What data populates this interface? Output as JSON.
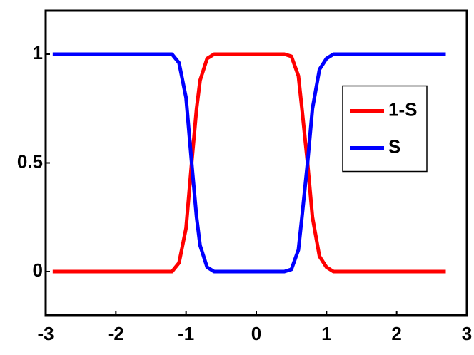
{
  "chart_data": {
    "type": "line",
    "x": [
      -2.9,
      -2.5,
      -2,
      -1.5,
      -1.2,
      -1.1,
      -1.0,
      -0.92,
      -0.85,
      -0.8,
      -0.7,
      -0.6,
      0,
      0.4,
      0.5,
      0.6,
      0.65,
      0.73,
      0.8,
      0.9,
      1.0,
      1.1,
      1.5,
      2,
      2.5,
      2.7
    ],
    "series": [
      {
        "name": "1-S",
        "color": "#ff0000",
        "values": [
          0,
          0,
          0,
          0,
          0,
          0.04,
          0.2,
          0.5,
          0.75,
          0.88,
          0.98,
          1,
          1,
          1,
          0.99,
          0.9,
          0.75,
          0.5,
          0.25,
          0.07,
          0.02,
          0,
          0,
          0,
          0,
          0
        ]
      },
      {
        "name": "S",
        "color": "#0000ff",
        "values": [
          1,
          1,
          1,
          1,
          1,
          0.96,
          0.8,
          0.5,
          0.25,
          0.12,
          0.02,
          0,
          0,
          0,
          0.01,
          0.1,
          0.25,
          0.5,
          0.75,
          0.93,
          0.98,
          1,
          1,
          1,
          1,
          1
        ]
      }
    ],
    "xlim": [
      -3,
      3
    ],
    "xticks": [
      -3,
      -2,
      -1,
      0,
      1,
      2,
      3
    ],
    "ylim": [
      -0.2,
      1.2
    ],
    "yticks": [
      0,
      0.5,
      1
    ],
    "legend": "center right"
  }
}
